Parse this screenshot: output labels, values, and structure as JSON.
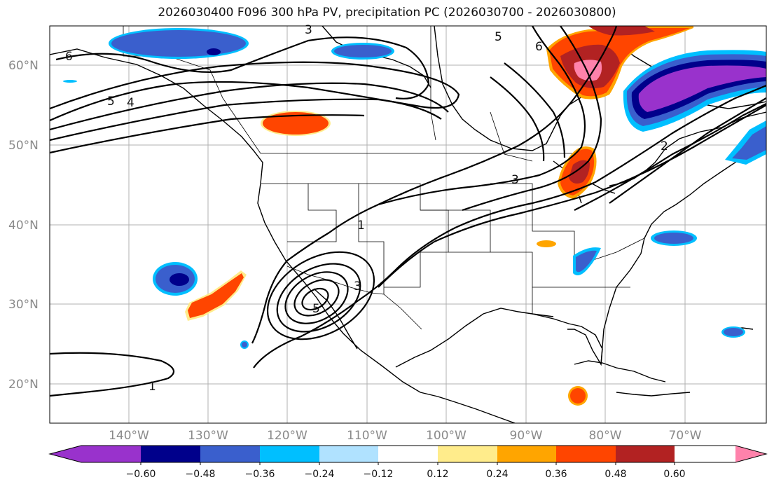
{
  "title": "2026030400 F096 300 hPa PV, precipitation PC (2026030700 - 2026030800)",
  "lat_labels": [
    "60°N",
    "50°N",
    "40°N",
    "30°N",
    "20°N"
  ],
  "lon_labels": [
    "140°W",
    "130°W",
    "120°W",
    "110°W",
    "100°W",
    "90°W",
    "80°W",
    "70°W"
  ],
  "contour_labels": [
    "1",
    "1",
    "2",
    "3",
    "3",
    "3",
    "4",
    "5",
    "5",
    "6",
    "6",
    "5"
  ],
  "colorbar": {
    "tick_labels": [
      "−0.60",
      "−0.48",
      "−0.36",
      "−0.24",
      "−0.12",
      "0.12",
      "0.24",
      "0.36",
      "0.48",
      "0.60"
    ],
    "colors": [
      "#9932cc",
      "#00008b",
      "#3a5fcd",
      "#00bfff",
      "#b0e2ff",
      "#ffffff",
      "#ffec8b",
      "#ffa500",
      "#ff4500",
      "#b22222",
      "#ff82ab"
    ]
  }
}
